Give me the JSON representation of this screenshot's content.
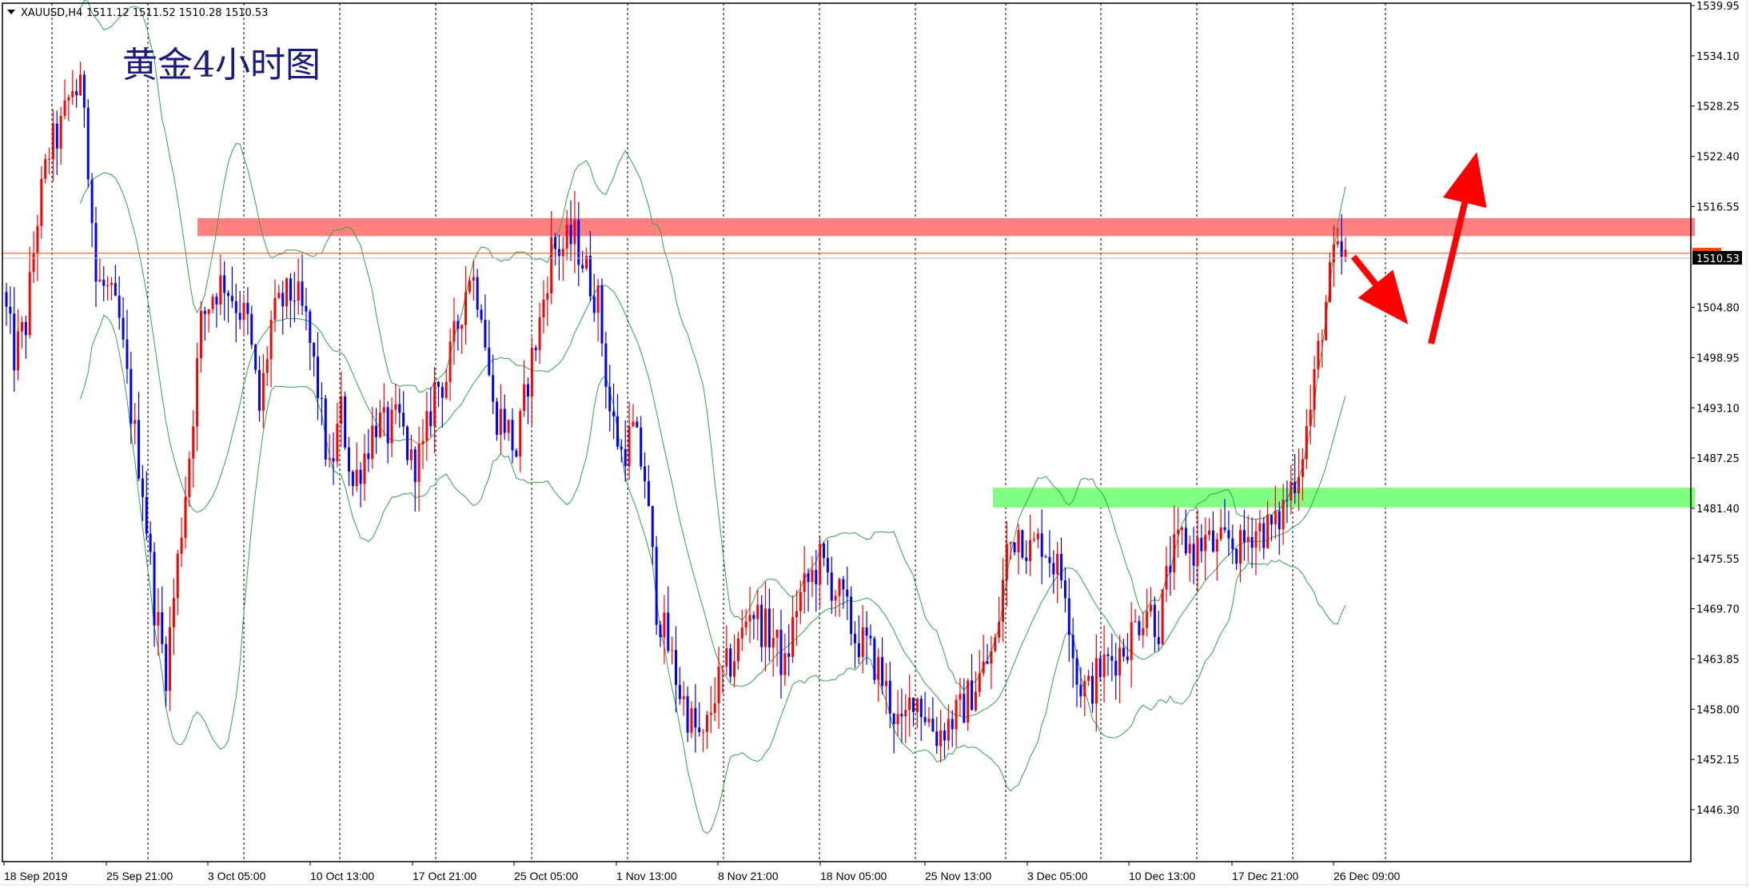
{
  "header": {
    "symbol": "XAUUSD,H4",
    "ohlc": "1511.12 1511.52 1510.28 1510.53",
    "menu_icon": "triangle-down-icon"
  },
  "annotation": {
    "title": "黄金4小时图",
    "color": "#1a1a80"
  },
  "colors": {
    "bull": "#ff0000",
    "bear": "#0000ff",
    "bands": "#2ea44f",
    "resistance": "#ff8080",
    "support": "#80ff80",
    "arrow": "#ff0000",
    "price_line": "#ff4500"
  },
  "chart_data": {
    "type": "candlestick",
    "symbol": "XAUUSD",
    "timeframe": "H4",
    "ylim": [
      1443.0,
      1540.5
    ],
    "yticks": [
      "1539.95",
      "1534.10",
      "1528.25",
      "1522.40",
      "1516.55",
      "1510.53",
      "1504.80",
      "1498.95",
      "1493.10",
      "1487.25",
      "1481.40",
      "1475.55",
      "1469.70",
      "1463.85",
      "1458.00",
      "1452.15",
      "1446.30"
    ],
    "ytick_values": [
      1539.95,
      1534.1,
      1528.25,
      1522.4,
      1516.55,
      1510.53,
      1504.8,
      1498.95,
      1493.1,
      1487.25,
      1481.4,
      1475.55,
      1469.7,
      1463.85,
      1458.0,
      1452.15,
      1446.3
    ],
    "xticks": [
      "18 Sep 2019",
      "25 Sep 21:00",
      "3 Oct 05:00",
      "10 Oct 13:00",
      "17 Oct 21:00",
      "25 Oct 05:00",
      "1 Nov 13:00",
      "8 Nov 21:00",
      "18 Nov 05:00",
      "25 Nov 13:00",
      "3 Dec 05:00",
      "10 Dec 13:00",
      "17 Dec 21:00",
      "26 Dec 09:00"
    ],
    "grid": "vertical-dashed",
    "current_price": 1510.53,
    "ask_price": 1511.1,
    "indicator": "Bollinger Bands",
    "closes": [
      1506.6,
      1499.1,
      1502.9,
      1515.4,
      1523.0,
      1525.5,
      1530.5,
      1529.3,
      1507.9,
      1506.6,
      1502.9,
      1492.8,
      1484.0,
      1470.2,
      1462.6,
      1475.2,
      1487.8,
      1502.9,
      1506.6,
      1507.9,
      1505.4,
      1502.9,
      1492.8,
      1502.9,
      1505.4,
      1506.6,
      1502.9,
      1495.3,
      1485.2,
      1492.8,
      1484.0,
      1487.8,
      1491.6,
      1490.3,
      1491.6,
      1486.5,
      1487.8,
      1495.3,
      1496.6,
      1502.9,
      1509.1,
      1505.4,
      1492.8,
      1491.6,
      1487.8,
      1496.6,
      1502.9,
      1511.7,
      1511.7,
      1512.9,
      1509.1,
      1505.4,
      1492.8,
      1487.8,
      1490.3,
      1485.2,
      1470.2,
      1465.2,
      1460.1,
      1456.4,
      1453.8,
      1460.1,
      1462.6,
      1465.2,
      1470.2,
      1467.7,
      1466.4,
      1462.6,
      1470.2,
      1472.7,
      1475.2,
      1472.7,
      1470.2,
      1466.4,
      1465.2,
      1462.6,
      1458.9,
      1455.1,
      1460.1,
      1457.6,
      1455.1,
      1456.4,
      1457.6,
      1460.1,
      1462.6,
      1465.2,
      1476.5,
      1479.0,
      1476.5,
      1477.7,
      1475.2,
      1472.7,
      1461.4,
      1460.1,
      1462.6,
      1463.9,
      1465.2,
      1467.7,
      1470.2,
      1467.7,
      1475.2,
      1477.7,
      1476.5,
      1477.7,
      1476.5,
      1477.7,
      1476.5,
      1479.0,
      1479.0,
      1479.0,
      1482.8,
      1486.5,
      1492.8,
      1502.9,
      1510.4,
      1510.5
    ],
    "zones": [
      {
        "name": "resistance",
        "from": 1513.1,
        "to": 1515.2
      },
      {
        "name": "support",
        "from": 1481.5,
        "to": 1483.8
      }
    ],
    "arrows": [
      "down-then-up"
    ]
  }
}
